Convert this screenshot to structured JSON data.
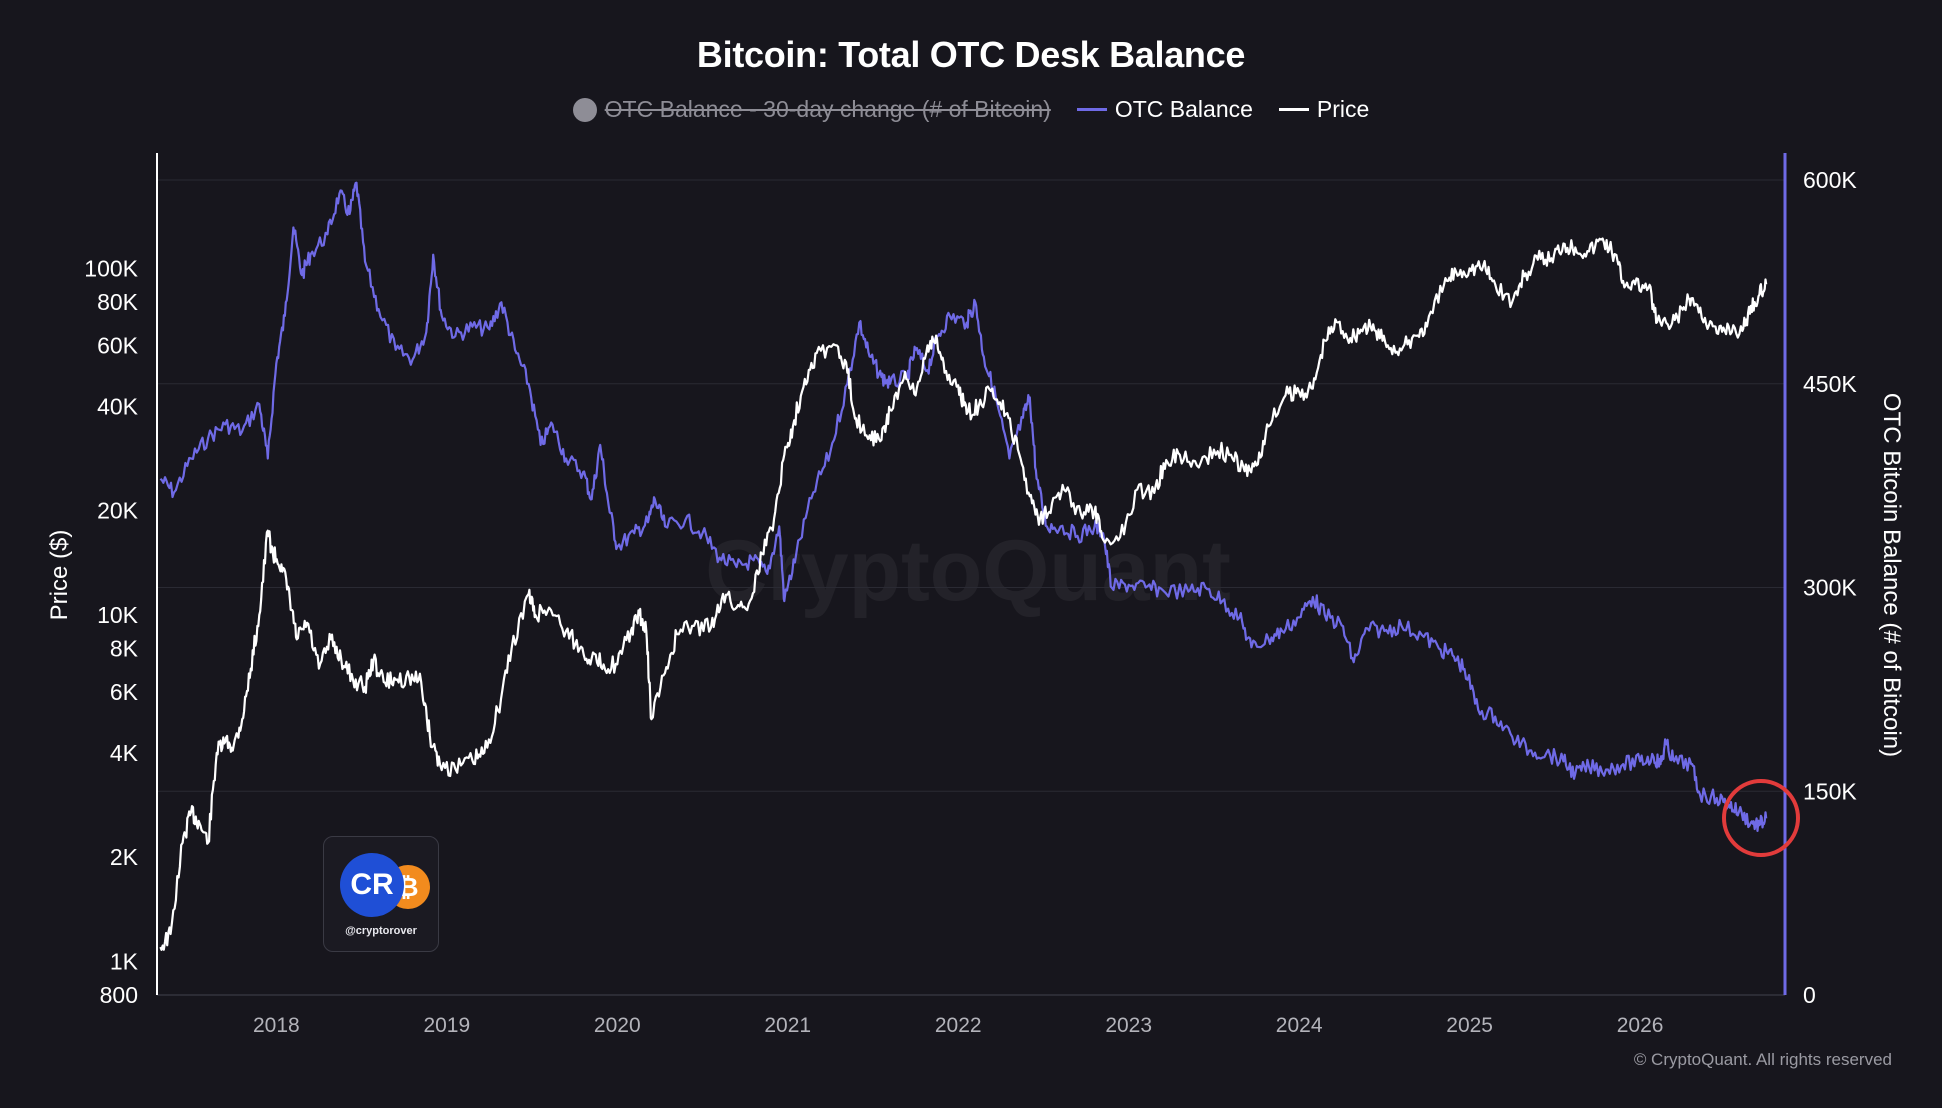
{
  "chart_data": {
    "type": "line",
    "title": "Bitcoin: Total OTC Desk Balance",
    "legend": [
      {
        "label": "OTC Balance - 30-day change (# of Bitcoin)",
        "color": "#8e8d96",
        "hidden": true
      },
      {
        "label": "OTC Balance",
        "color": "#6f6ae6"
      },
      {
        "label": "Price",
        "color": "#ffffff"
      }
    ],
    "legend_placement": "top-center",
    "grid": true,
    "x": {
      "range": [
        2017.3,
        2026.85
      ],
      "ticks": [
        "2018",
        "2019",
        "2020",
        "2021",
        "2022",
        "2023",
        "2024",
        "2025",
        "2026"
      ]
    },
    "y_left": {
      "label": "Price ($)",
      "scale": "log",
      "range": [
        800,
        180000
      ],
      "ticks": [
        "100K",
        "80K",
        "60K",
        "40K",
        "20K",
        "10K",
        "8K",
        "6K",
        "4K",
        "2K",
        "1K",
        "800"
      ]
    },
    "y_right": {
      "label": "OTC Bitcoin Balance (# of Bitcoin)",
      "range": [
        0,
        600000
      ],
      "ticks": [
        "600K",
        "450K",
        "300K",
        "150K",
        "0"
      ]
    },
    "series": [
      {
        "name": "OTC Balance",
        "axis": "right",
        "color": "#6f6ae6",
        "points": [
          [
            2017.32,
            380000
          ],
          [
            2017.4,
            370000
          ],
          [
            2017.5,
            395000
          ],
          [
            2017.6,
            410000
          ],
          [
            2017.7,
            420000
          ],
          [
            2017.8,
            415000
          ],
          [
            2017.9,
            435000
          ],
          [
            2017.95,
            395000
          ],
          [
            2018.0,
            465000
          ],
          [
            2018.05,
            500000
          ],
          [
            2018.1,
            565000
          ],
          [
            2018.15,
            530000
          ],
          [
            2018.2,
            545000
          ],
          [
            2018.3,
            560000
          ],
          [
            2018.37,
            590000
          ],
          [
            2018.43,
            575000
          ],
          [
            2018.47,
            598000
          ],
          [
            2018.52,
            540000
          ],
          [
            2018.6,
            505000
          ],
          [
            2018.7,
            475000
          ],
          [
            2018.8,
            468000
          ],
          [
            2018.88,
            488000
          ],
          [
            2018.92,
            545000
          ],
          [
            2018.97,
            500000
          ],
          [
            2019.05,
            485000
          ],
          [
            2019.15,
            492000
          ],
          [
            2019.25,
            490000
          ],
          [
            2019.32,
            510000
          ],
          [
            2019.4,
            475000
          ],
          [
            2019.48,
            450000
          ],
          [
            2019.55,
            405000
          ],
          [
            2019.62,
            420000
          ],
          [
            2019.7,
            395000
          ],
          [
            2019.8,
            385000
          ],
          [
            2019.85,
            365000
          ],
          [
            2019.9,
            405000
          ],
          [
            2019.95,
            360000
          ],
          [
            2020.0,
            330000
          ],
          [
            2020.1,
            340000
          ],
          [
            2020.18,
            348000
          ],
          [
            2020.22,
            365000
          ],
          [
            2020.28,
            345000
          ],
          [
            2020.4,
            350000
          ],
          [
            2020.5,
            340000
          ],
          [
            2020.6,
            322000
          ],
          [
            2020.7,
            315000
          ],
          [
            2020.8,
            320000
          ],
          [
            2020.88,
            310000
          ],
          [
            2020.95,
            345000
          ],
          [
            2020.98,
            290000
          ],
          [
            2021.05,
            325000
          ],
          [
            2021.15,
            370000
          ],
          [
            2021.25,
            400000
          ],
          [
            2021.35,
            450000
          ],
          [
            2021.42,
            495000
          ],
          [
            2021.48,
            470000
          ],
          [
            2021.55,
            455000
          ],
          [
            2021.6,
            450000
          ],
          [
            2021.7,
            455000
          ],
          [
            2021.75,
            475000
          ],
          [
            2021.82,
            460000
          ],
          [
            2021.88,
            485000
          ],
          [
            2021.95,
            500000
          ],
          [
            2022.05,
            495000
          ],
          [
            2022.1,
            510000
          ],
          [
            2022.15,
            470000
          ],
          [
            2022.22,
            440000
          ],
          [
            2022.3,
            395000
          ],
          [
            2022.38,
            425000
          ],
          [
            2022.42,
            440000
          ],
          [
            2022.46,
            380000
          ],
          [
            2022.52,
            345000
          ],
          [
            2022.6,
            345000
          ],
          [
            2022.7,
            338000
          ],
          [
            2022.8,
            345000
          ],
          [
            2022.85,
            340000
          ],
          [
            2022.9,
            300000
          ],
          [
            2023.0,
            302000
          ],
          [
            2023.1,
            300000
          ],
          [
            2023.2,
            298000
          ],
          [
            2023.35,
            297000
          ],
          [
            2023.45,
            300000
          ],
          [
            2023.55,
            290000
          ],
          [
            2023.65,
            278000
          ],
          [
            2023.72,
            256000
          ],
          [
            2023.82,
            262000
          ],
          [
            2023.9,
            268000
          ],
          [
            2024.0,
            278000
          ],
          [
            2024.08,
            293000
          ],
          [
            2024.15,
            280000
          ],
          [
            2024.25,
            272000
          ],
          [
            2024.32,
            245000
          ],
          [
            2024.4,
            270000
          ],
          [
            2024.5,
            268000
          ],
          [
            2024.6,
            272000
          ],
          [
            2024.72,
            265000
          ],
          [
            2024.82,
            255000
          ],
          [
            2024.9,
            250000
          ],
          [
            2024.97,
            240000
          ],
          [
            2025.05,
            210000
          ],
          [
            2025.15,
            205000
          ],
          [
            2025.25,
            190000
          ],
          [
            2025.35,
            180000
          ],
          [
            2025.45,
            178000
          ],
          [
            2025.55,
            172000
          ],
          [
            2025.62,
            163000
          ],
          [
            2025.7,
            168000
          ],
          [
            2025.8,
            166000
          ],
          [
            2025.9,
            170000
          ],
          [
            2026.0,
            172000
          ],
          [
            2026.08,
            175000
          ],
          [
            2026.12,
            170000
          ],
          [
            2026.15,
            185000
          ],
          [
            2026.2,
            172000
          ],
          [
            2026.3,
            170000
          ],
          [
            2026.35,
            148000
          ],
          [
            2026.45,
            145000
          ],
          [
            2026.52,
            140000
          ],
          [
            2026.58,
            135000
          ],
          [
            2026.65,
            127000
          ],
          [
            2026.7,
            125000
          ],
          [
            2026.74,
            130000
          ]
        ]
      },
      {
        "name": "Price",
        "axis": "left",
        "color": "#ffffff",
        "points": [
          [
            2017.32,
            1100
          ],
          [
            2017.38,
            1200
          ],
          [
            2017.45,
            2200
          ],
          [
            2017.5,
            2700
          ],
          [
            2017.55,
            2500
          ],
          [
            2017.6,
            2200
          ],
          [
            2017.65,
            4000
          ],
          [
            2017.7,
            4300
          ],
          [
            2017.75,
            4200
          ],
          [
            2017.8,
            5000
          ],
          [
            2017.85,
            7000
          ],
          [
            2017.9,
            10000
          ],
          [
            2017.95,
            17500
          ],
          [
            2017.98,
            15000
          ],
          [
            2018.03,
            14000
          ],
          [
            2018.08,
            11000
          ],
          [
            2018.12,
            8500
          ],
          [
            2018.18,
            9500
          ],
          [
            2018.25,
            7000
          ],
          [
            2018.32,
            8500
          ],
          [
            2018.38,
            7500
          ],
          [
            2018.45,
            6500
          ],
          [
            2018.52,
            6200
          ],
          [
            2018.57,
            7400
          ],
          [
            2018.63,
            6400
          ],
          [
            2018.7,
            6500
          ],
          [
            2018.78,
            6600
          ],
          [
            2018.85,
            6400
          ],
          [
            2018.9,
            4500
          ],
          [
            2018.96,
            3700
          ],
          [
            2019.05,
            3600
          ],
          [
            2019.15,
            3800
          ],
          [
            2019.22,
            4000
          ],
          [
            2019.3,
            5300
          ],
          [
            2019.38,
            8000
          ],
          [
            2019.48,
            11500
          ],
          [
            2019.52,
            10000
          ],
          [
            2019.6,
            10500
          ],
          [
            2019.7,
            9000
          ],
          [
            2019.78,
            8000
          ],
          [
            2019.85,
            7500
          ],
          [
            2019.92,
            7200
          ],
          [
            2020.0,
            7200
          ],
          [
            2020.08,
            9000
          ],
          [
            2020.13,
            10000
          ],
          [
            2020.17,
            9000
          ],
          [
            2020.2,
            5000
          ],
          [
            2020.28,
            6800
          ],
          [
            2020.35,
            8800
          ],
          [
            2020.45,
            9300
          ],
          [
            2020.55,
            9200
          ],
          [
            2020.62,
            11500
          ],
          [
            2020.7,
            10500
          ],
          [
            2020.78,
            11000
          ],
          [
            2020.85,
            15000
          ],
          [
            2020.92,
            19000
          ],
          [
            2020.98,
            29000
          ],
          [
            2021.03,
            35000
          ],
          [
            2021.1,
            48000
          ],
          [
            2021.17,
            57000
          ],
          [
            2021.28,
            60000
          ],
          [
            2021.35,
            50000
          ],
          [
            2021.4,
            37000
          ],
          [
            2021.48,
            33000
          ],
          [
            2021.55,
            32000
          ],
          [
            2021.6,
            39000
          ],
          [
            2021.68,
            48000
          ],
          [
            2021.75,
            43000
          ],
          [
            2021.82,
            60000
          ],
          [
            2021.87,
            64000
          ],
          [
            2021.92,
            50000
          ],
          [
            2022.0,
            46000
          ],
          [
            2022.05,
            38000
          ],
          [
            2022.12,
            40000
          ],
          [
            2022.2,
            45000
          ],
          [
            2022.28,
            38000
          ],
          [
            2022.35,
            30000
          ],
          [
            2022.42,
            22000
          ],
          [
            2022.48,
            19000
          ],
          [
            2022.55,
            21000
          ],
          [
            2022.62,
            23000
          ],
          [
            2022.72,
            19500
          ],
          [
            2022.8,
            20000
          ],
          [
            2022.85,
            16500
          ],
          [
            2022.95,
            16800
          ],
          [
            2023.05,
            23000
          ],
          [
            2023.15,
            22500
          ],
          [
            2023.22,
            28000
          ],
          [
            2023.3,
            29000
          ],
          [
            2023.4,
            27000
          ],
          [
            2023.5,
            30000
          ],
          [
            2023.6,
            29000
          ],
          [
            2023.68,
            26000
          ],
          [
            2023.75,
            27000
          ],
          [
            2023.82,
            35000
          ],
          [
            2023.92,
            43000
          ],
          [
            2024.0,
            44000
          ],
          [
            2024.08,
            45000
          ],
          [
            2024.15,
            62000
          ],
          [
            2024.22,
            70000
          ],
          [
            2024.3,
            63000
          ],
          [
            2024.38,
            68000
          ],
          [
            2024.45,
            66000
          ],
          [
            2024.52,
            60000
          ],
          [
            2024.6,
            58000
          ],
          [
            2024.68,
            64000
          ],
          [
            2024.75,
            68000
          ],
          [
            2024.85,
            90000
          ],
          [
            2024.92,
            98000
          ],
          [
            2025.0,
            100000
          ],
          [
            2025.08,
            102000
          ],
          [
            2025.15,
            90000
          ],
          [
            2025.25,
            80000
          ],
          [
            2025.32,
            95000
          ],
          [
            2025.4,
            106000
          ],
          [
            2025.48,
            107000
          ],
          [
            2025.55,
            118000
          ],
          [
            2025.62,
            115000
          ],
          [
            2025.7,
            112000
          ],
          [
            2025.78,
            122000
          ],
          [
            2025.85,
            110000
          ],
          [
            2025.9,
            92000
          ],
          [
            2025.97,
            90000
          ],
          [
            2026.05,
            88000
          ],
          [
            2026.1,
            70000
          ],
          [
            2026.18,
            68000
          ],
          [
            2026.25,
            76000
          ],
          [
            2026.3,
            82000
          ],
          [
            2026.38,
            72000
          ],
          [
            2026.45,
            65000
          ],
          [
            2026.52,
            68000
          ],
          [
            2026.6,
            66000
          ],
          [
            2026.65,
            78000
          ],
          [
            2026.7,
            84000
          ],
          [
            2026.74,
            90000
          ]
        ]
      }
    ]
  },
  "watermark": "CryptoQuant",
  "logo": {
    "handle": "@cryptorover",
    "mark": "CR",
    "coin_symbol": "₿"
  },
  "copyright": "© CryptoQuant. All rights reserved",
  "highlight_circle_color": "#e23b3b"
}
